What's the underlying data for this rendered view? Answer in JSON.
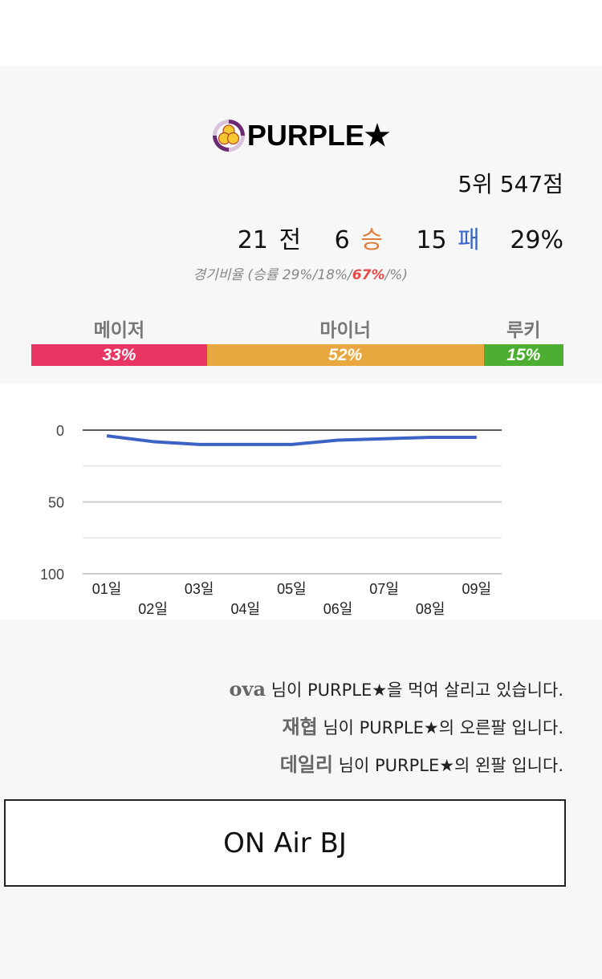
{
  "team": {
    "name": "PURPLE★",
    "rank_score": "5위 547점"
  },
  "record": {
    "games": "21",
    "games_label": "전",
    "wins": "6",
    "wins_label": "승",
    "losses": "15",
    "losses_label": "패",
    "win_rate": "29%"
  },
  "ratio": {
    "prefix": "경기비율 (승률 29%/18%/",
    "highlight": "67%",
    "suffix": "/%)"
  },
  "tiers": [
    {
      "label": "메이저",
      "percent": "33%",
      "value": 33,
      "color": "#e83562"
    },
    {
      "label": "마이너",
      "percent": "52%",
      "value": 52,
      "color": "#e9a83f"
    },
    {
      "label": "루키",
      "percent": "15%",
      "value": 15,
      "color": "#4caf32"
    }
  ],
  "chart_data": {
    "type": "line",
    "title": "",
    "x": [
      "01일",
      "02일",
      "03일",
      "04일",
      "05일",
      "06일",
      "07일",
      "08일",
      "09일"
    ],
    "series": [
      {
        "name": "rank",
        "values": [
          4,
          8,
          10,
          10,
          10,
          7,
          6,
          5,
          5
        ],
        "color": "#3b62c4"
      }
    ],
    "ylim": [
      0,
      100
    ],
    "y_inverted": true,
    "yticks": [
      "0",
      "50",
      "100"
    ],
    "grid": true
  },
  "messages": [
    {
      "name": "ova",
      "text": " 님이 PURPLE★을 먹여 살리고 있습니다."
    },
    {
      "name": "재협",
      "text": " 님이 PURPLE★의 오른팔 입니다."
    },
    {
      "name": "데일리",
      "text": " 님이 PURPLE★의 왼팔 입니다."
    }
  ],
  "onair_button": "ON Air BJ"
}
